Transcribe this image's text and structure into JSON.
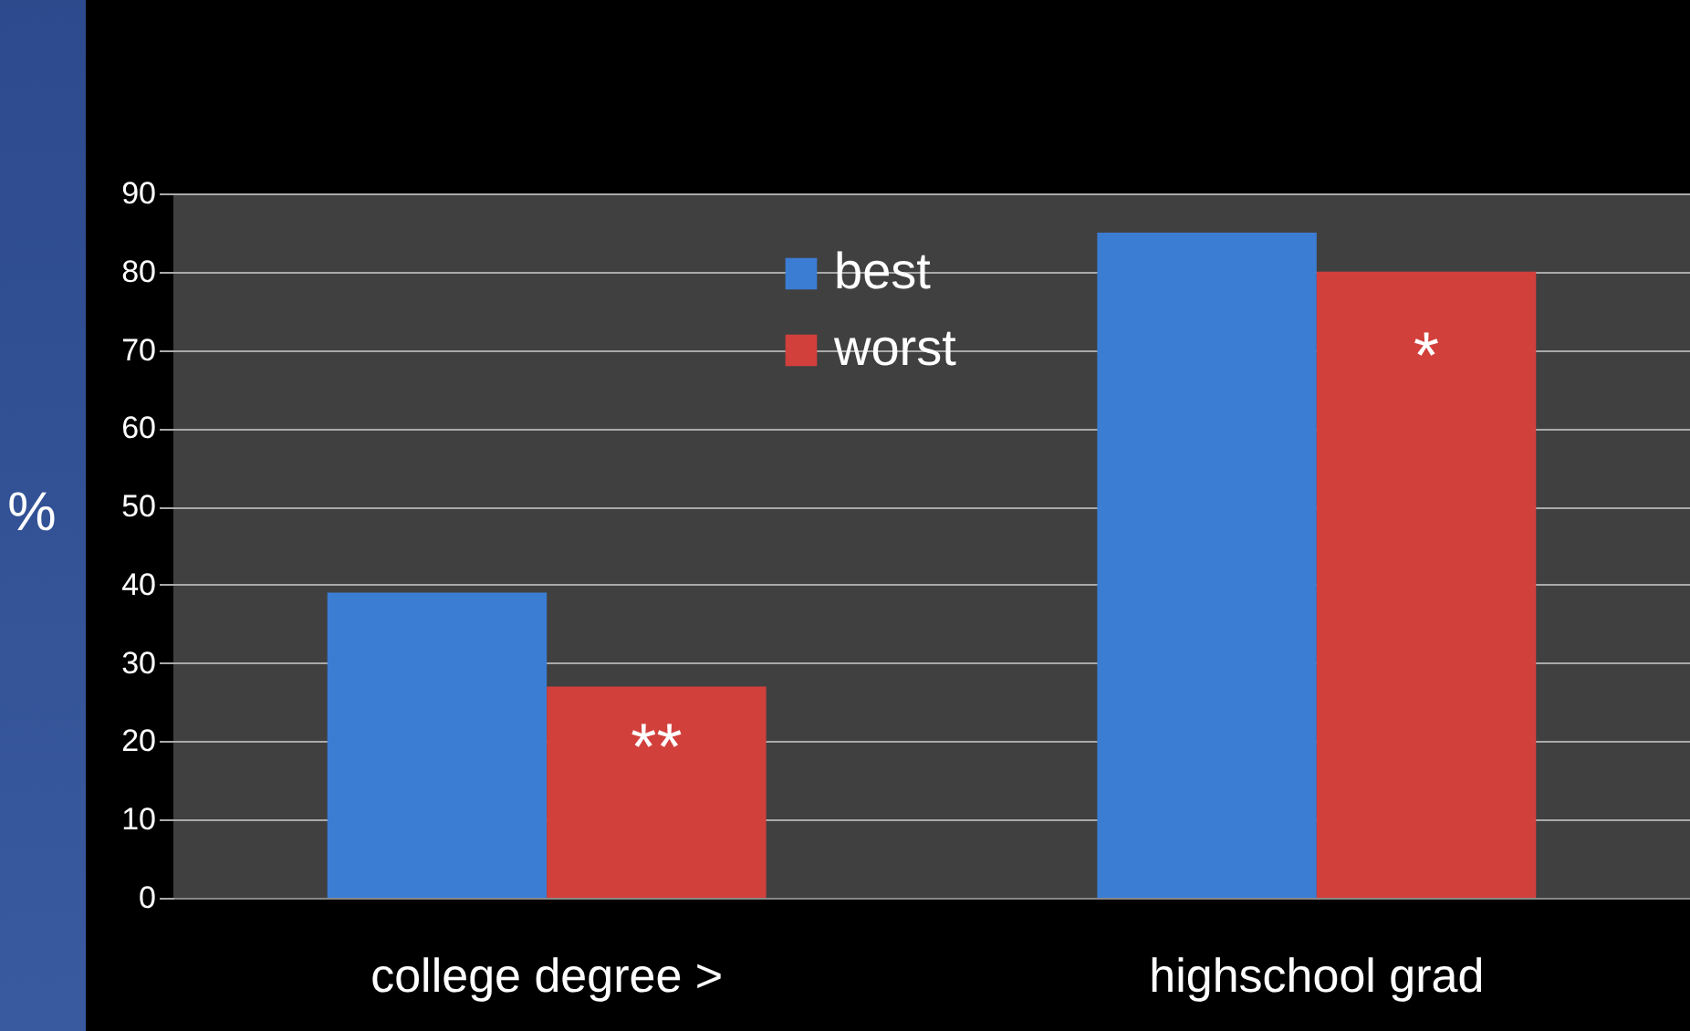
{
  "chart_data": {
    "type": "bar",
    "ylabel": "%",
    "categories": [
      "college degree >",
      "highschool grad"
    ],
    "series": [
      {
        "name": "best",
        "color": "#3c7dd4",
        "values": [
          39,
          85
        ]
      },
      {
        "name": "worst",
        "color": "#d2403c",
        "values": [
          27,
          80
        ]
      }
    ],
    "ylim": [
      0,
      90
    ],
    "yticks": [
      0,
      10,
      20,
      30,
      40,
      50,
      60,
      70,
      80,
      90
    ],
    "grid": "y",
    "legend": "top",
    "annotations": [
      {
        "text": "**",
        "x": "college degree >",
        "y": 19
      },
      {
        "text": "*",
        "x": "highschool grad",
        "y": 69
      }
    ]
  }
}
